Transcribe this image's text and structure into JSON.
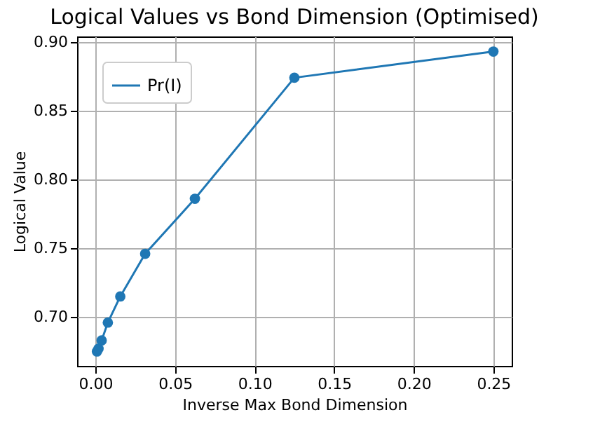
{
  "chart_data": {
    "type": "line",
    "title": "Logical Values vs Bond Dimension (Optimised)",
    "xlabel": "Inverse Max Bond Dimension",
    "ylabel": "Logical Value",
    "x": [
      0.0009765625,
      0.001953125,
      0.00390625,
      0.0078125,
      0.015625,
      0.03125,
      0.0625,
      0.125,
      0.25
    ],
    "series": [
      {
        "name": "Pr(I)",
        "color": "#1f77b4",
        "values": [
          0.675,
          0.677,
          0.683,
          0.696,
          0.715,
          0.746,
          0.786,
          0.874,
          0.893
        ]
      }
    ],
    "xlim": [
      -0.0115,
      0.2615
    ],
    "xticks": [
      {
        "value": 0,
        "label": "0.00"
      },
      {
        "value": 0.05,
        "label": "0.05"
      },
      {
        "value": 0.1,
        "label": "0.10"
      },
      {
        "value": 0.15,
        "label": "0.15"
      },
      {
        "value": 0.2,
        "label": "0.20"
      },
      {
        "value": 0.25,
        "label": "0.25"
      }
    ],
    "ylim": [
      0.6645,
      0.904
    ],
    "yticks": [
      {
        "value": 0.7,
        "label": "0.70"
      },
      {
        "value": 0.75,
        "label": "0.75"
      },
      {
        "value": 0.8,
        "label": "0.80"
      },
      {
        "value": 0.85,
        "label": "0.85"
      },
      {
        "value": 0.9,
        "label": "0.90"
      }
    ],
    "grid": true,
    "legend": "top left",
    "marker": "circle",
    "line_style": "solid"
  }
}
